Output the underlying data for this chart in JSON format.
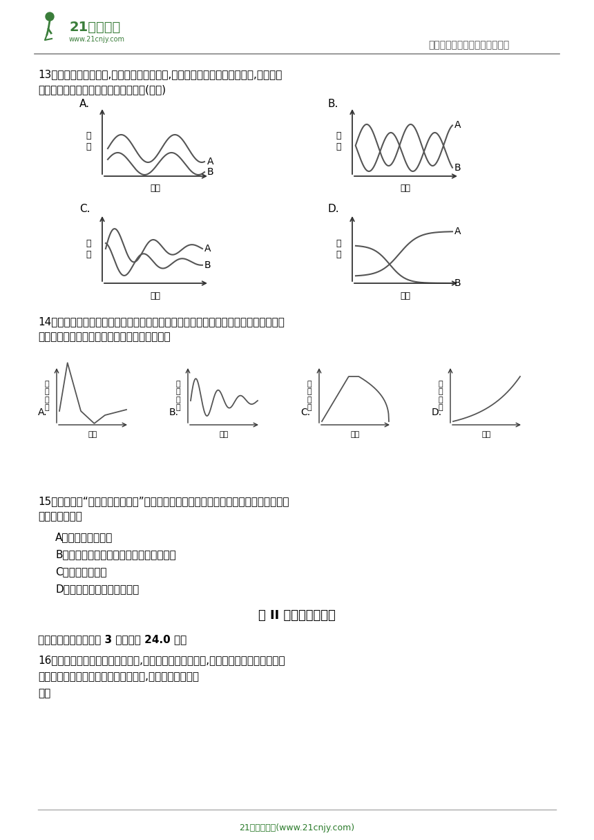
{
  "title_header": "中小学教育资源及组卷应用平台",
  "footer_text": "21世纪教育网(www.21cnjy.com)",
  "q13_text1": "13．在美国的罗亚岛上,狼是驼鹿唯一的天敵,而驼鹿也是狼唯一的食物来源,下列哪一",
  "q13_text2": "项能正确表示驼鹿与狼的数量变化关系(　　)",
  "q14_text1": "14．在某一天然的草原生态系统中，狼在一段时间内由于某种疾病而大量死亡，下列最",
  "q14_text2": "符合较长时间内兔群数量变化的曲线是（　　）",
  "q15_text1": "15．资江属于“长江流域十年禁捕”范围。随着禁捕时间延长，资江水域生态系统的变化",
  "q15_text2": "不包括（　　）",
  "q15_A": "A．生物多样性增加",
  "q15_B": "B．生态系统保持自身相对稳定的能力增强",
  "q15_C": "C．食物网变复杂",
  "q15_D": "D．基因库中的基因数量减少",
  "section2_title": "第 II 卷（非选择题）",
  "section2_sub": "二、简答题（本大题共 3 小题，共 24.0 分）",
  "q16_text1": "16．由于不同地域的环境差别很大,生物种类也是千差万别,因此地球上有着多种多样的",
  "q16_text2": "生态系统。下面是几种生态系统示意图,请据图完成下列问",
  "q16_text3": "题。",
  "bg_color": "#ffffff",
  "text_color": "#000000",
  "axis_color": "#555555",
  "curve_color": "#666666",
  "green_color": "#3a7d3a"
}
